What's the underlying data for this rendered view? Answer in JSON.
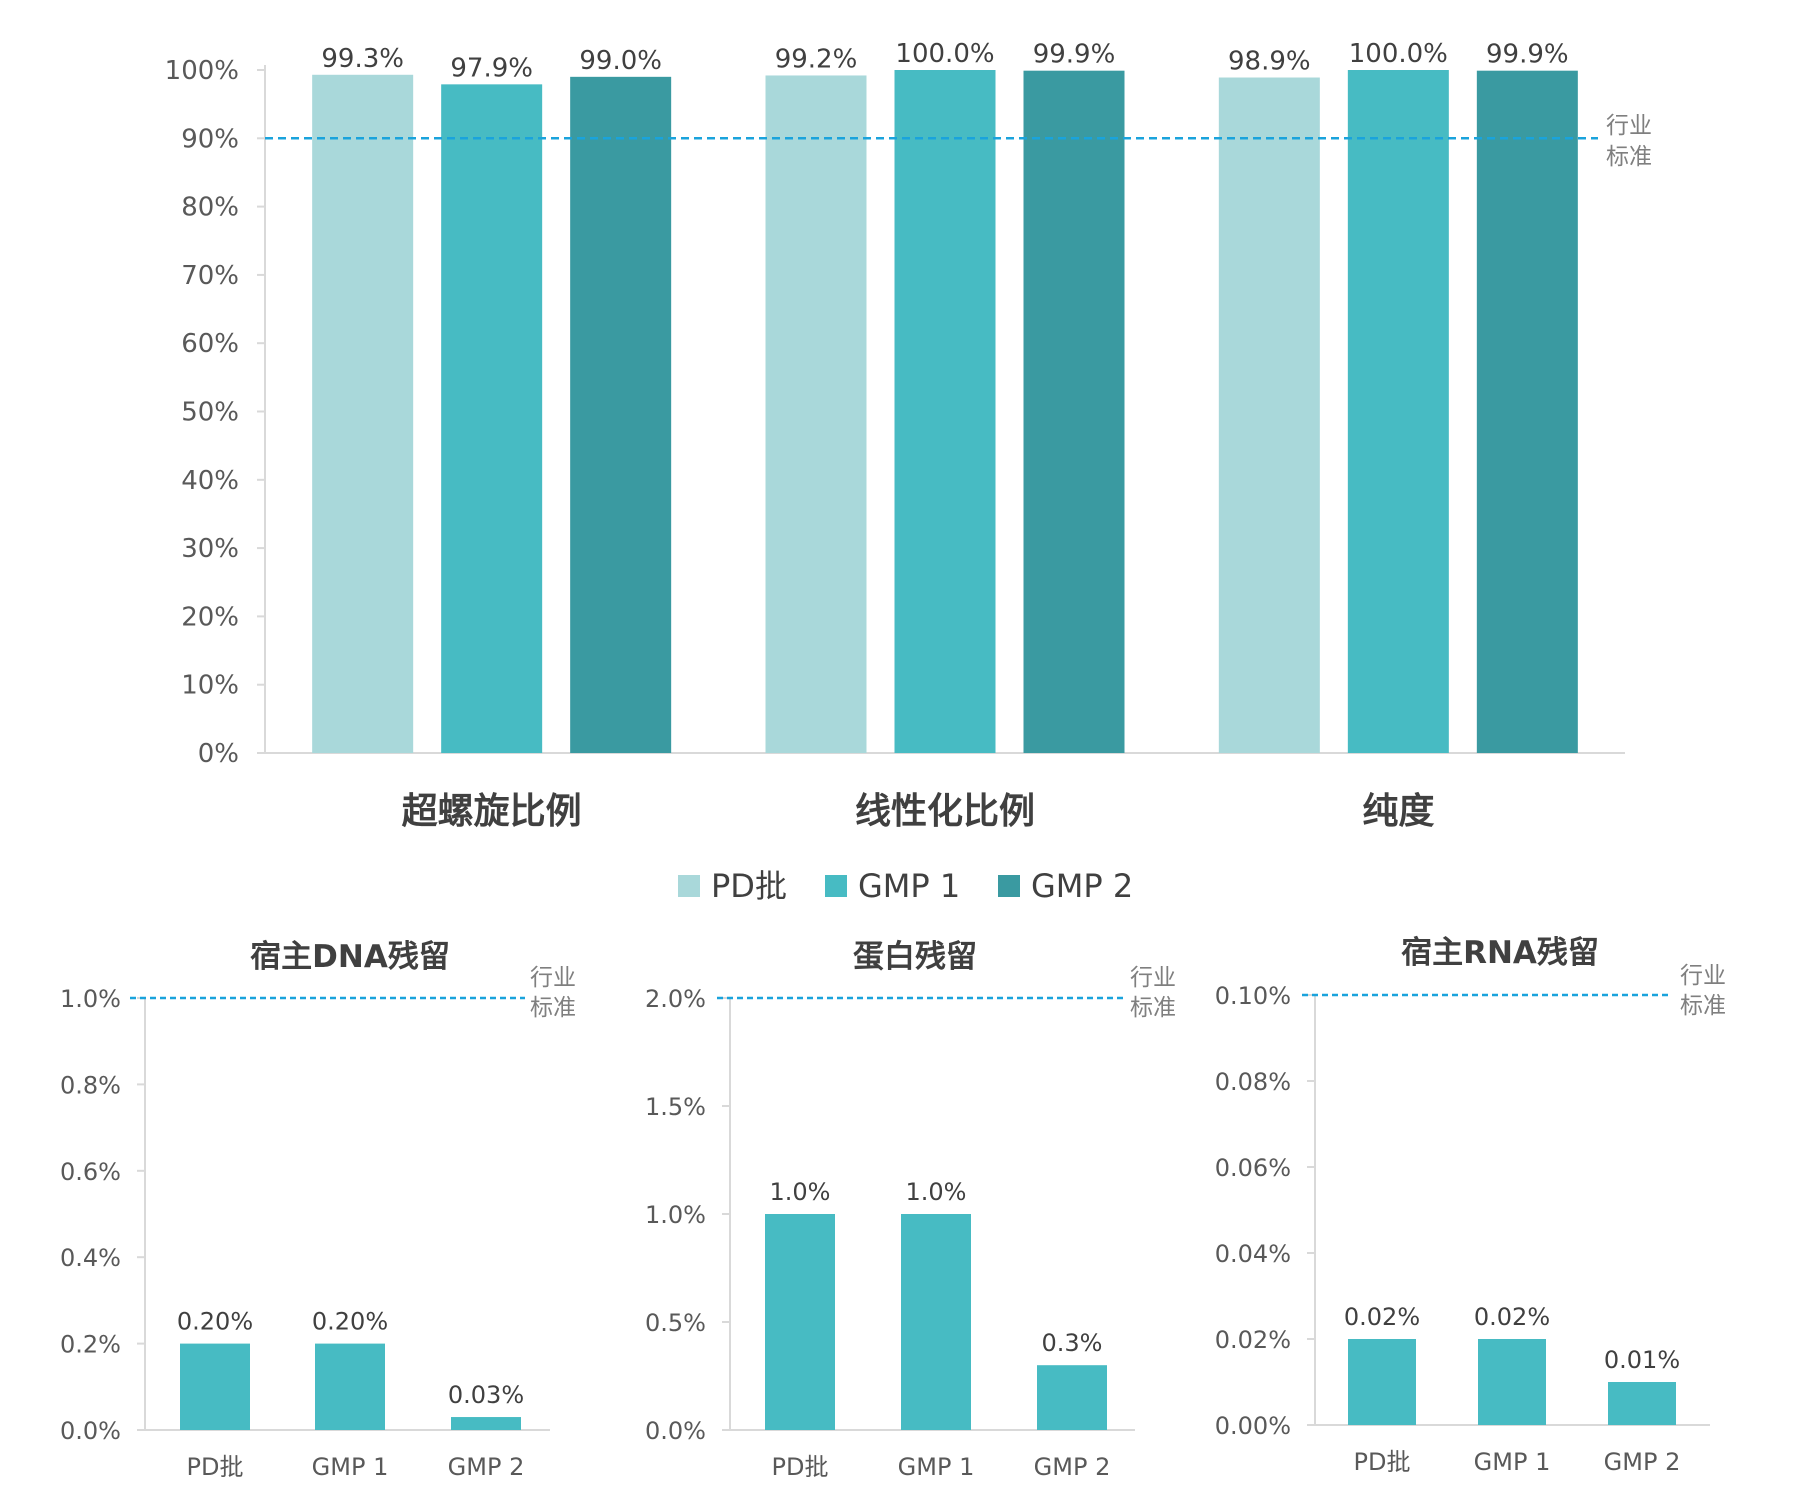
{
  "colors": {
    "pd": "#a9d8da",
    "gmp1": "#47bbc3",
    "gmp2": "#3a9aa1",
    "standard_line": "#1aa3dc",
    "axis": "#d9d9d9"
  },
  "legend": {
    "items": [
      {
        "label": "PD批",
        "color": "#a9d8da"
      },
      {
        "label": "GMP 1",
        "color": "#47bbc3"
      },
      {
        "label": "GMP 2",
        "color": "#3a9aa1"
      }
    ]
  },
  "chart_data": [
    {
      "type": "bar",
      "categories": [
        "超螺旋比例",
        "线性化比例",
        "纯度"
      ],
      "series": [
        {
          "name": "PD批",
          "values": [
            99.3,
            99.2,
            98.9
          ],
          "labels": [
            "99.3%",
            "99.2%",
            "98.9%"
          ]
        },
        {
          "name": "GMP 1",
          "values": [
            97.9,
            100.0,
            100.0
          ],
          "labels": [
            "97.9%",
            "100.0%",
            "100.0%"
          ]
        },
        {
          "name": "GMP 2",
          "values": [
            99.0,
            99.9,
            99.9
          ],
          "labels": [
            "99.0%",
            "99.9%",
            "99.9%"
          ]
        }
      ],
      "ylim": [
        0,
        100
      ],
      "yticks": [
        0,
        10,
        20,
        30,
        40,
        50,
        60,
        70,
        80,
        90,
        100
      ],
      "ytick_labels": [
        "0%",
        "10%",
        "20%",
        "30%",
        "40%",
        "50%",
        "60%",
        "70%",
        "80%",
        "90%",
        "100%"
      ],
      "standard": {
        "value": 90,
        "label": [
          "行业",
          "标准"
        ]
      },
      "grid": false,
      "legend_position": "bottom"
    },
    {
      "type": "bar",
      "title": "宿主DNA残留",
      "categories": [
        "PD批",
        "GMP 1",
        "GMP 2"
      ],
      "values": [
        0.2,
        0.2,
        0.03
      ],
      "labels": [
        "0.20%",
        "0.20%",
        "0.03%"
      ],
      "ylim": [
        0,
        1.0
      ],
      "yticks": [
        0,
        0.2,
        0.4,
        0.6,
        0.8,
        1.0
      ],
      "ytick_labels": [
        "0.0%",
        "0.2%",
        "0.4%",
        "0.6%",
        "0.8%",
        "1.0%"
      ],
      "standard": {
        "value": 1.0,
        "label": [
          "行业",
          "标准"
        ]
      },
      "grid": false
    },
    {
      "type": "bar",
      "title": "蛋白残留",
      "categories": [
        "PD批",
        "GMP 1",
        "GMP 2"
      ],
      "values": [
        1.0,
        1.0,
        0.3
      ],
      "labels": [
        "1.0%",
        "1.0%",
        "0.3%"
      ],
      "ylim": [
        0,
        2.0
      ],
      "yticks": [
        0,
        0.5,
        1.0,
        1.5,
        2.0
      ],
      "ytick_labels": [
        "0.0%",
        "0.5%",
        "1.0%",
        "1.5%",
        "2.0%"
      ],
      "standard": {
        "value": 2.0,
        "label": [
          "行业",
          "标准"
        ]
      },
      "grid": false
    },
    {
      "type": "bar",
      "title": "宿主RNA残留",
      "categories": [
        "PD批",
        "GMP 1",
        "GMP 2"
      ],
      "values": [
        0.02,
        0.02,
        0.01
      ],
      "labels": [
        "0.02%",
        "0.02%",
        "0.01%"
      ],
      "ylim": [
        0,
        0.1
      ],
      "yticks": [
        0,
        0.02,
        0.04,
        0.06,
        0.08,
        0.1
      ],
      "ytick_labels": [
        "0.00%",
        "0.02%",
        "0.04%",
        "0.06%",
        "0.08%",
        "0.10%"
      ],
      "standard": {
        "value": 0.1,
        "label": [
          "行业",
          "标准"
        ]
      },
      "grid": false
    }
  ]
}
